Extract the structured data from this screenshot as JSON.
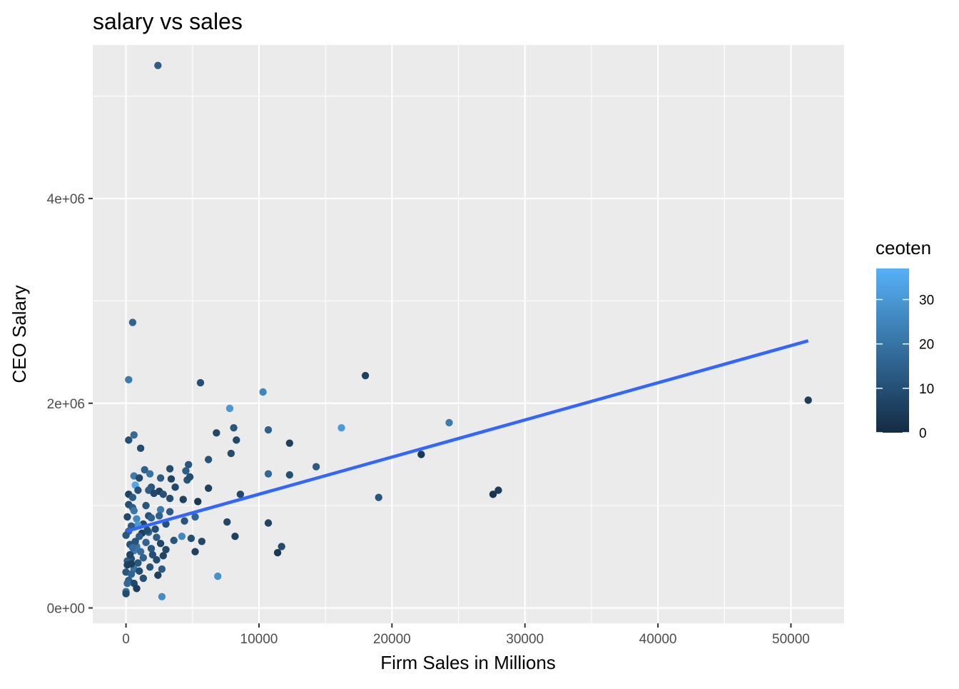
{
  "chart_data": {
    "type": "scatter",
    "title": "salary vs sales",
    "xlabel": "Firm Sales in Millions",
    "ylabel": "CEO Salary",
    "xlim": [
      -2500,
      54000
    ],
    "ylim": [
      -150000,
      5500000
    ],
    "x_ticks": [
      {
        "value": 0,
        "label": "0"
      },
      {
        "value": 10000,
        "label": "10000"
      },
      {
        "value": 20000,
        "label": "20000"
      },
      {
        "value": 30000,
        "label": "30000"
      },
      {
        "value": 40000,
        "label": "40000"
      },
      {
        "value": 50000,
        "label": "50000"
      }
    ],
    "y_ticks": [
      {
        "value": 0,
        "label": "0e+00"
      },
      {
        "value": 2000000,
        "label": "2e+06"
      },
      {
        "value": 4000000,
        "label": "4e+06"
      }
    ],
    "grid": true,
    "legend": {
      "title": "ceoten",
      "placement": "right",
      "range": [
        0,
        37
      ],
      "color_low": "#132B43",
      "color_high": "#56B1F7",
      "ticks": [
        {
          "value": 0,
          "label": "0"
        },
        {
          "value": 10,
          "label": "10"
        },
        {
          "value": 20,
          "label": "20"
        },
        {
          "value": 30,
          "label": "30"
        }
      ]
    },
    "trend_line": {
      "color": "#3366FF",
      "x": [
        50,
        51300
      ],
      "y": [
        750000,
        2610000
      ]
    },
    "points": [
      [
        2400,
        5300000,
        14
      ],
      [
        500,
        2790000,
        16
      ],
      [
        200,
        2230000,
        22
      ],
      [
        5600,
        2200000,
        10
      ],
      [
        18000,
        2270000,
        6
      ],
      [
        10300,
        2110000,
        25
      ],
      [
        7800,
        1950000,
        30
      ],
      [
        51300,
        2030000,
        5
      ],
      [
        24300,
        1810000,
        22
      ],
      [
        16200,
        1760000,
        31
      ],
      [
        8100,
        1760000,
        12
      ],
      [
        10700,
        1740000,
        15
      ],
      [
        6800,
        1710000,
        8
      ],
      [
        600,
        1690000,
        17
      ],
      [
        200,
        1640000,
        10
      ],
      [
        8300,
        1640000,
        8
      ],
      [
        12300,
        1610000,
        6
      ],
      [
        1100,
        1560000,
        9
      ],
      [
        22200,
        1500000,
        4
      ],
      [
        7900,
        1510000,
        9
      ],
      [
        6200,
        1450000,
        11
      ],
      [
        4700,
        1400000,
        12
      ],
      [
        14300,
        1380000,
        13
      ],
      [
        3300,
        1360000,
        9
      ],
      [
        1400,
        1350000,
        15
      ],
      [
        4500,
        1340000,
        14
      ],
      [
        10700,
        1310000,
        17
      ],
      [
        12300,
        1300000,
        10
      ],
      [
        600,
        1290000,
        22
      ],
      [
        1800,
        1310000,
        20
      ],
      [
        1000,
        1270000,
        8
      ],
      [
        4600,
        1250000,
        11
      ],
      [
        2600,
        1270000,
        13
      ],
      [
        3400,
        1260000,
        7
      ],
      [
        4800,
        1280000,
        9
      ],
      [
        3700,
        1180000,
        8
      ],
      [
        6200,
        1170000,
        6
      ],
      [
        1900,
        1180000,
        12
      ],
      [
        700,
        1200000,
        34
      ],
      [
        28000,
        1150000,
        5
      ],
      [
        27600,
        1110000,
        3
      ],
      [
        8600,
        1110000,
        8
      ],
      [
        900,
        1150000,
        10
      ],
      [
        2500,
        1140000,
        6
      ],
      [
        1700,
        1150000,
        14
      ],
      [
        19000,
        1080000,
        12
      ],
      [
        200,
        1110000,
        7
      ],
      [
        2100,
        1120000,
        8
      ],
      [
        2800,
        1110000,
        11
      ],
      [
        3300,
        1070000,
        9
      ],
      [
        5400,
        1040000,
        4
      ],
      [
        4300,
        1060000,
        6
      ],
      [
        500,
        1080000,
        13
      ],
      [
        1500,
        1000000,
        12
      ],
      [
        200,
        1010000,
        10
      ],
      [
        500,
        980000,
        14
      ],
      [
        2600,
        960000,
        22
      ],
      [
        3300,
        940000,
        13
      ],
      [
        5200,
        890000,
        16
      ],
      [
        600,
        950000,
        21
      ],
      [
        1700,
        900000,
        10
      ],
      [
        100,
        890000,
        8
      ],
      [
        800,
        870000,
        26
      ],
      [
        2500,
        900000,
        15
      ],
      [
        7600,
        840000,
        8
      ],
      [
        10700,
        830000,
        7
      ],
      [
        4400,
        850000,
        11
      ],
      [
        3000,
        820000,
        10
      ],
      [
        1300,
        820000,
        8
      ],
      [
        900,
        810000,
        30
      ],
      [
        400,
        800000,
        13
      ],
      [
        2200,
        770000,
        9
      ],
      [
        200,
        750000,
        17
      ],
      [
        1700,
        740000,
        16
      ],
      [
        1200,
        730000,
        6
      ],
      [
        0,
        710000,
        12
      ],
      [
        4200,
        700000,
        26
      ],
      [
        8200,
        700000,
        6
      ],
      [
        4900,
        680000,
        10
      ],
      [
        2300,
        690000,
        14
      ],
      [
        5700,
        650000,
        8
      ],
      [
        2600,
        630000,
        7
      ],
      [
        1500,
        640000,
        16
      ],
      [
        300,
        620000,
        11
      ],
      [
        11700,
        600000,
        9
      ],
      [
        800,
        600000,
        20
      ],
      [
        1900,
        580000,
        12
      ],
      [
        3000,
        570000,
        8
      ],
      [
        600,
        560000,
        22
      ],
      [
        5200,
        550000,
        6
      ],
      [
        1100,
        550000,
        18
      ],
      [
        11400,
        540000,
        4
      ],
      [
        2000,
        520000,
        10
      ],
      [
        2800,
        510000,
        7
      ],
      [
        1300,
        490000,
        15
      ],
      [
        400,
        480000,
        10
      ],
      [
        2300,
        470000,
        9
      ],
      [
        100,
        460000,
        14
      ],
      [
        900,
        440000,
        12
      ],
      [
        100,
        420000,
        6
      ],
      [
        1800,
        400000,
        11
      ],
      [
        2700,
        380000,
        13
      ],
      [
        600,
        380000,
        20
      ],
      [
        1000,
        360000,
        9
      ],
      [
        0,
        350000,
        12
      ],
      [
        400,
        330000,
        16
      ],
      [
        2400,
        320000,
        6
      ],
      [
        6900,
        310000,
        28
      ],
      [
        1300,
        290000,
        10
      ],
      [
        200,
        270000,
        14
      ],
      [
        600,
        240000,
        8
      ],
      [
        100,
        240000,
        17
      ],
      [
        800,
        190000,
        5
      ],
      [
        0,
        160000,
        19
      ],
      [
        0,
        140000,
        9
      ],
      [
        2700,
        110000,
        27
      ],
      [
        300,
        520000,
        7
      ],
      [
        700,
        650000,
        11
      ],
      [
        1000,
        700000,
        13
      ],
      [
        1600,
        760000,
        9
      ],
      [
        400,
        430000,
        5
      ],
      [
        1900,
        880000,
        15
      ],
      [
        3600,
        660000,
        12
      ],
      [
        500,
        590000,
        18
      ]
    ]
  }
}
